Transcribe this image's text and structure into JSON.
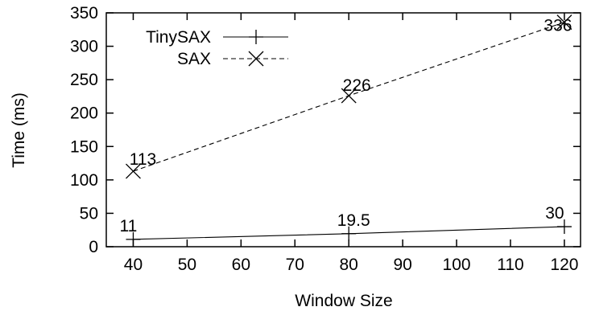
{
  "chart_data": {
    "type": "line",
    "title": "",
    "xlabel": "Window Size",
    "ylabel": "Time (ms)",
    "xlim": [
      35,
      123
    ],
    "ylim": [
      0,
      350
    ],
    "xticks": [
      40,
      50,
      60,
      70,
      80,
      90,
      100,
      110,
      120
    ],
    "yticks": [
      0,
      50,
      100,
      150,
      200,
      250,
      300,
      350
    ],
    "grid": false,
    "legend_position": "top-left",
    "series": [
      {
        "name": "TinySAX",
        "marker": "plus",
        "line_style": "solid",
        "x": [
          40,
          80,
          120
        ],
        "values": [
          11,
          19.5,
          30
        ],
        "labels": [
          "11",
          "19.5",
          "30"
        ]
      },
      {
        "name": "SAX",
        "marker": "cross",
        "line_style": "dashed",
        "x": [
          40,
          80,
          120
        ],
        "values": [
          113,
          226,
          336
        ],
        "labels": [
          "113",
          "226",
          "336"
        ]
      }
    ]
  }
}
